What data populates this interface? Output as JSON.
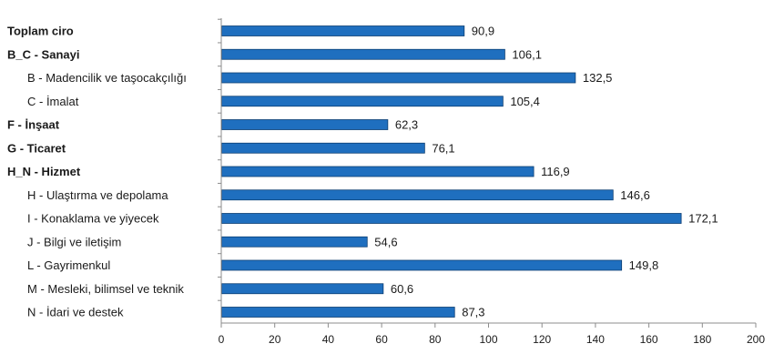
{
  "chart_data": {
    "type": "bar",
    "orientation": "horizontal",
    "title": "",
    "xlabel": "",
    "ylabel": "",
    "xlim": [
      0,
      200
    ],
    "x_ticks": [
      "0",
      "20",
      "40",
      "60",
      "80",
      "100",
      "120",
      "140",
      "160",
      "180",
      "200"
    ],
    "grid": false,
    "bar_color": "#1f6fbf",
    "bar_edge_color": "#0d3f73",
    "categories": [
      "Toplam ciro",
      "B_C - Sanayi",
      "B - Madencilik ve taşocakçılığı",
      "C - İmalat",
      "F - İnşaat",
      "G - Ticaret",
      "H_N - Hizmet",
      "H - Ulaştırma ve depolama",
      "I - Konaklama ve yiyecek",
      "J - Bilgi ve iletişim",
      "L - Gayrimenkul",
      "M - Mesleki, bilimsel ve teknik",
      "N - İdari ve destek"
    ],
    "bold_categories": [
      true,
      true,
      false,
      false,
      true,
      true,
      true,
      false,
      false,
      false,
      false,
      false,
      false
    ],
    "indented_categories": [
      false,
      false,
      true,
      true,
      false,
      false,
      false,
      true,
      true,
      true,
      true,
      true,
      true
    ],
    "values": [
      90.9,
      106.1,
      132.5,
      105.4,
      62.3,
      76.1,
      116.9,
      146.6,
      172.1,
      54.6,
      149.8,
      60.6,
      87.3
    ],
    "value_labels": [
      "90,9",
      "106,1",
      "132,5",
      "105,4",
      "62,3",
      "76,1",
      "116,9",
      "146,6",
      "172,1",
      "54,6",
      "149,8",
      "60,6",
      "87,3"
    ]
  }
}
